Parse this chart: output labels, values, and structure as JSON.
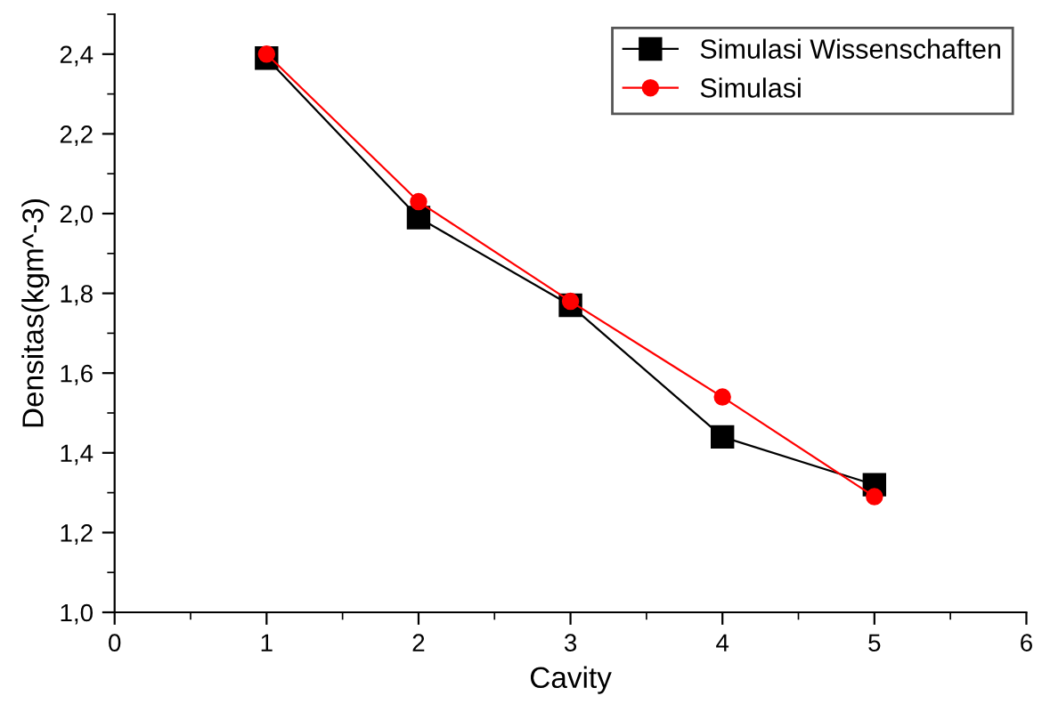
{
  "chart_data": {
    "type": "line",
    "xlabel": "Cavity",
    "ylabel": "Densitas(kgm^-3)",
    "x": [
      1,
      2,
      3,
      4,
      5
    ],
    "series": [
      {
        "name": "Simulasi Wissenschaften",
        "color": "#000000",
        "marker": "square",
        "values": [
          2.39,
          1.99,
          1.77,
          1.44,
          1.32
        ]
      },
      {
        "name": "Simulasi",
        "color": "#ff0000",
        "marker": "circle",
        "values": [
          2.4,
          2.03,
          1.78,
          1.54,
          1.29
        ]
      }
    ],
    "xlim": [
      0,
      6
    ],
    "xticks": [
      0,
      {
        "value": 0.5,
        "label": null
      },
      1,
      {
        "value": 1.5,
        "label": null
      },
      2,
      {
        "value": 2.5,
        "label": null
      },
      3,
      {
        "value": 3.5,
        "label": null
      },
      4,
      {
        "value": 4.5,
        "label": null
      },
      5,
      {
        "value": 5.5,
        "label": null
      },
      6
    ],
    "ylim": [
      1.0,
      2.5
    ],
    "yticks": [
      {
        "value": 1.0,
        "label": "1,0"
      },
      {
        "value": 1.1,
        "label": null
      },
      {
        "value": 1.2,
        "label": "1,2"
      },
      {
        "value": 1.3,
        "label": null
      },
      {
        "value": 1.4,
        "label": "1,4"
      },
      {
        "value": 1.5,
        "label": null
      },
      {
        "value": 1.6,
        "label": "1,6"
      },
      {
        "value": 1.7,
        "label": null
      },
      {
        "value": 1.8,
        "label": "1,8"
      },
      {
        "value": 1.9,
        "label": null
      },
      {
        "value": 2.0,
        "label": "2,0"
      },
      {
        "value": 2.1,
        "label": null
      },
      {
        "value": 2.2,
        "label": "2,2"
      },
      {
        "value": 2.3,
        "label": null
      },
      {
        "value": 2.4,
        "label": "2,4"
      },
      {
        "value": 2.5,
        "label": null
      }
    ],
    "grid": false,
    "legend": "top right",
    "line_style": "solid"
  }
}
